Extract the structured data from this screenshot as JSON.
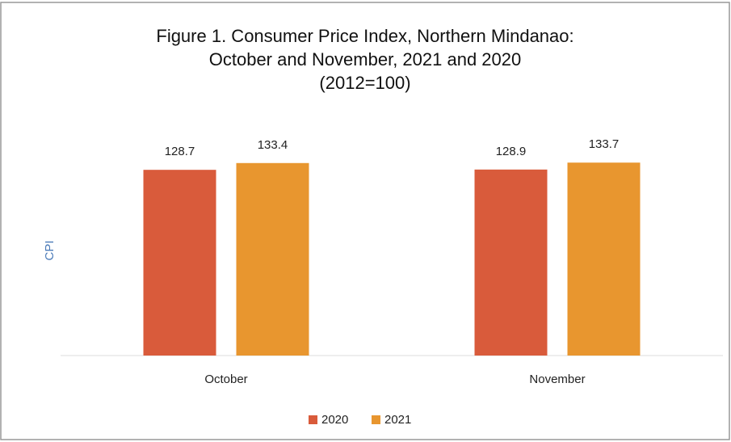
{
  "chart_data": {
    "type": "bar",
    "title": [
      "Figure 1.  Consumer Price Index, Northern Mindanao:",
      "October and November, 2021 and 2020",
      "(2012=100)"
    ],
    "y_label": "CPI",
    "categories": [
      "October",
      "November"
    ],
    "series": [
      {
        "name": "2020",
        "color": "#d95b3b",
        "values": [
          128.7,
          128.9
        ]
      },
      {
        "name": "2021",
        "color": "#e8962f",
        "values": [
          133.4,
          133.7
        ]
      }
    ],
    "ylim": [
      0,
      140
    ],
    "legend": "bottom"
  }
}
